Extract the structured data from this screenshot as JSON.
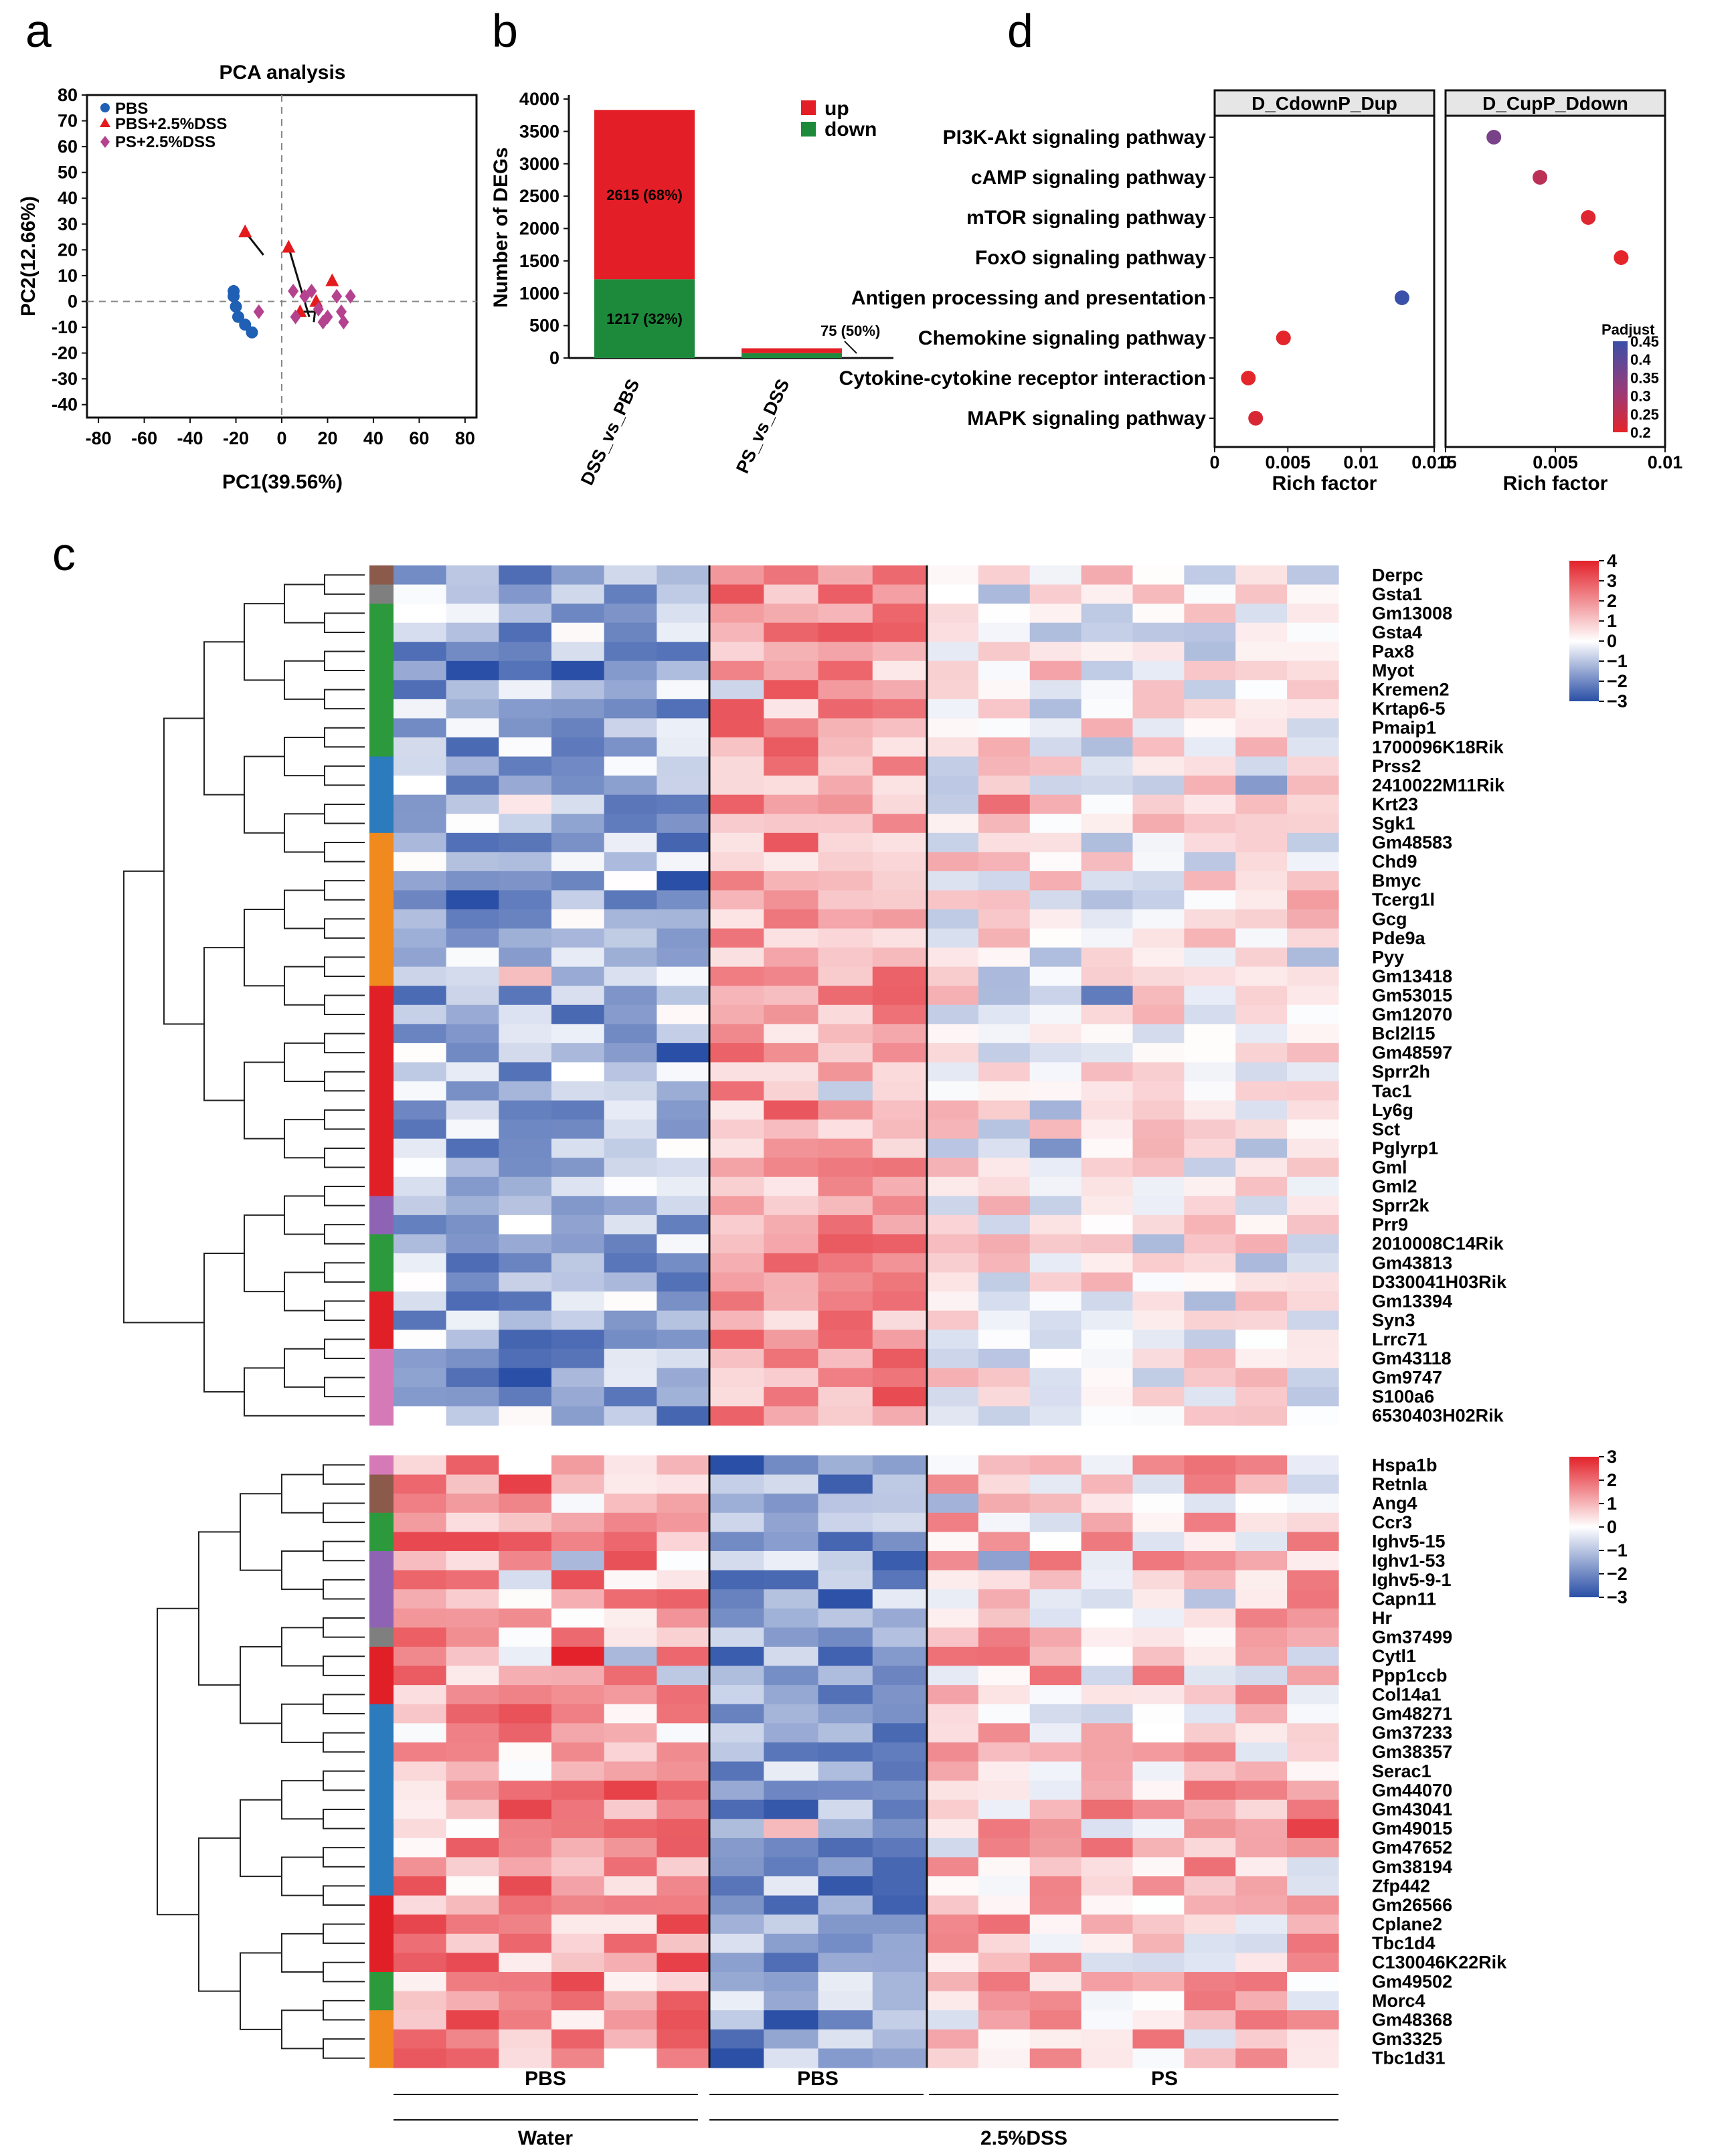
{
  "panel_labels": {
    "a": "a",
    "b": "b",
    "c": "c",
    "d": "d"
  },
  "colors": {
    "pbs": "#1f5fb4",
    "dss": "#e41a1c",
    "ps": "#b5428f",
    "up": "#e41e26",
    "down": "#1d8a3b",
    "heat_low": "#2a4fa6",
    "heat_mid": "#ffffff",
    "heat_high": "#e3222b",
    "padj_low": "#3b50a8",
    "padj_high": "#e4252a",
    "cluster_colors": {
      "brown": "#8c5a4a",
      "gray": "#7f7f7f",
      "green": "#2c9a3c",
      "blue": "#2b7bbd",
      "orange": "#f0891e",
      "red": "#e11f26",
      "purple": "#8e63b4",
      "pink": "#d67ab7"
    }
  },
  "chart_data": [
    {
      "id": "pca",
      "type": "scatter",
      "title": "PCA analysis",
      "xlabel": "PC1(39.56%)",
      "ylabel": "PC2(12.66%)",
      "xlim": [
        -85,
        85
      ],
      "ylim": [
        -45,
        80
      ],
      "xticks": [
        "-80",
        "-60",
        "-40",
        "-20",
        "0",
        "20",
        "40",
        "60",
        "80"
      ],
      "yticks": [
        "80",
        "70",
        "60",
        "50",
        "40",
        "30",
        "20",
        "10",
        "0",
        "-10",
        "-20",
        "-30",
        "-40"
      ],
      "xtick_values": [
        -80,
        -60,
        -40,
        -20,
        0,
        20,
        40,
        60,
        80
      ],
      "ytick_values": [
        80,
        70,
        60,
        50,
        40,
        30,
        20,
        10,
        0,
        -10,
        -20,
        -30,
        -40
      ],
      "legend": [
        "PBS",
        "PBS+2.5%DSS",
        "PS+2.5%DSS"
      ],
      "series": [
        {
          "name": "PBS",
          "marker": "circle",
          "points": [
            [
              -21,
              4
            ],
            [
              -21,
              2
            ],
            [
              -20,
              -2
            ],
            [
              -19,
              -6
            ],
            [
              -16,
              -9
            ],
            [
              -13,
              -12
            ]
          ]
        },
        {
          "name": "PBS+2.5%DSS",
          "marker": "triangle",
          "points": [
            [
              -16,
              27
            ],
            [
              3,
              21
            ],
            [
              15,
              0
            ],
            [
              22,
              8
            ],
            [
              8,
              -4
            ]
          ]
        },
        {
          "name": "PS+2.5%DSS",
          "marker": "diamond",
          "points": [
            [
              -10,
              -4
            ],
            [
              5,
              4
            ],
            [
              6,
              -6
            ],
            [
              10,
              2
            ],
            [
              13,
              4
            ],
            [
              16,
              -3
            ],
            [
              18,
              -8
            ],
            [
              20,
              -6
            ],
            [
              24,
              2
            ],
            [
              26,
              -4
            ],
            [
              27,
              -8
            ],
            [
              30,
              2
            ]
          ]
        }
      ],
      "connectors": [
        [
          [
            -16,
            27
          ],
          [
            -8,
            18
          ]
        ],
        [
          [
            3,
            21
          ],
          [
            12,
            -6
          ]
        ],
        [
          [
            8,
            -4
          ],
          [
            17,
            -4
          ]
        ],
        [
          [
            15,
            0
          ],
          [
            14,
            -8
          ]
        ]
      ]
    },
    {
      "id": "degs",
      "type": "bar",
      "xlabel": "",
      "ylabel": "Number of DEGs",
      "categories": [
        "DSS_vs_PBS",
        "PS_vs_DSS"
      ],
      "ylim": [
        0,
        4000
      ],
      "yticks": [
        "4000",
        "3500",
        "3000",
        "2500",
        "2000",
        "1500",
        "1000",
        "500",
        "0"
      ],
      "ytick_values": [
        4000,
        3500,
        3000,
        2500,
        2000,
        1500,
        1000,
        500,
        0
      ],
      "legend": [
        "up",
        "down"
      ],
      "series": [
        {
          "name": "down",
          "values": [
            1217,
            75
          ]
        },
        {
          "name": "up",
          "values": [
            2615,
            75
          ]
        }
      ],
      "labels": {
        "up": "2615 (68%)",
        "down": "1217 (32%)",
        "ps": "75 (50%)"
      }
    },
    {
      "id": "enrichment",
      "type": "scatter",
      "pathways": [
        "PI3K-Akt signaling pathway",
        "cAMP signaling pathway",
        "mTOR signaling pathway",
        "FoxO signaling pathway",
        "Antigen processing and presentation",
        "Chemokine signaling pathway",
        "Cytokine-cytokine receptor interaction",
        "MAPK signaling pathway"
      ],
      "facets": [
        {
          "title": "D_CdownP_Dup",
          "xlim": [
            0,
            0.015
          ],
          "xticks": [
            "0",
            "0.005",
            "0.01",
            "0.015"
          ],
          "xtick_values": [
            0,
            0.005,
            0.01,
            0.015
          ],
          "points": [
            {
              "pathway": "Antigen processing and presentation",
              "x": 0.0128,
              "padj": 0.45
            },
            {
              "pathway": "Chemokine signaling pathway",
              "x": 0.0047,
              "padj": 0.2
            },
            {
              "pathway": "Cytokine-cytokine receptor interaction",
              "x": 0.0023,
              "padj": 0.2
            },
            {
              "pathway": "MAPK signaling pathway",
              "x": 0.0028,
              "padj": 0.22
            }
          ]
        },
        {
          "title": "D_CupP_Ddown",
          "xlim": [
            0,
            0.01
          ],
          "xticks": [
            "0",
            "0.005",
            "0.01"
          ],
          "xtick_values": [
            0,
            0.005,
            0.01
          ],
          "points": [
            {
              "pathway": "PI3K-Akt signaling pathway",
              "x": 0.0022,
              "padj": 0.37
            },
            {
              "pathway": "cAMP signaling pathway",
              "x": 0.0043,
              "padj": 0.27
            },
            {
              "pathway": "mTOR signaling pathway",
              "x": 0.0065,
              "padj": 0.21
            },
            {
              "pathway": "FoxO signaling pathway",
              "x": 0.008,
              "padj": 0.2
            }
          ]
        }
      ],
      "xlabel": "Rich factor",
      "legend_title": "Padjust",
      "legend_ticks": [
        "0.45",
        "0.4",
        "0.35",
        "0.3",
        "0.25",
        "0.2"
      ],
      "legend_values": [
        0.45,
        0.4,
        0.35,
        0.3,
        0.25,
        0.2
      ]
    },
    {
      "id": "heatmap_top",
      "type": "heatmap",
      "genes": [
        "Derpc",
        "Gsta1",
        "Gm13008",
        "Gsta4",
        "Pax8",
        "Myot",
        "Kremen2",
        "Krtap6-5",
        "Pmaip1",
        "1700096K18Rik",
        "Prss2",
        "2410022M11Rik",
        "Krt23",
        "Sgk1",
        "Gm48583",
        "Chd9",
        "Bmyc",
        "Tcerg1l",
        "Gcg",
        "Pde9a",
        "Pyy",
        "Gm13418",
        "Gm53015",
        "Gm12070",
        "Bcl2l15",
        "Gm48597",
        "Sprr2h",
        "Tac1",
        "Ly6g",
        "Sct",
        "Pglyrp1",
        "Gml",
        "Gml2",
        "Sprr2k",
        "Prr9",
        "2010008C14Rik",
        "Gm43813",
        "D330041H03Rik",
        "Gm13394",
        "Syn3",
        "Lrrc71",
        "Gm43118",
        "Gm9747",
        "S100a6",
        "6530403H02Rik"
      ],
      "clusters": [
        [
          "brown",
          1
        ],
        [
          "gray",
          1
        ],
        [
          "green",
          8
        ],
        [
          "blue",
          4
        ],
        [
          "orange",
          8
        ],
        [
          "red",
          11
        ],
        [
          "purple",
          2
        ],
        [
          "green",
          3
        ],
        [
          "red",
          3
        ],
        [
          "pink",
          4
        ]
      ],
      "scale_ticks": [
        "4",
        "3",
        "2",
        "1",
        "0",
        "−1",
        "−2",
        "−3"
      ],
      "scale_values": [
        4,
        3,
        2,
        1,
        0,
        -1,
        -2,
        -3
      ],
      "zlim": [
        -3,
        4
      ],
      "seed": 7
    },
    {
      "id": "heatmap_bottom",
      "type": "heatmap",
      "genes": [
        "Hspa1b",
        "Retnla",
        "Ang4",
        "Ccr3",
        "Ighv5-15",
        "Ighv1-53",
        "Ighv5-9-1",
        "Capn11",
        "Hr",
        "Gm37499",
        "Cytl1",
        "Ppp1ccb",
        "Col14a1",
        "Gm48271",
        "Gm37233",
        "Gm38357",
        "Serac1",
        "Gm44070",
        "Gm43041",
        "Gm49015",
        "Gm47652",
        "Gm38194",
        "Zfp442",
        "Gm26566",
        "Cplane2",
        "Tbc1d4",
        "C130046K22Rik",
        "Gm49502",
        "Morc4",
        "Gm48368",
        "Gm3325",
        "Tbc1d31"
      ],
      "clusters": [
        [
          "pink",
          1
        ],
        [
          "brown",
          2
        ],
        [
          "green",
          2
        ],
        [
          "purple",
          4
        ],
        [
          "gray",
          1
        ],
        [
          "red",
          3
        ],
        [
          "blue",
          10
        ],
        [
          "red",
          4
        ],
        [
          "green",
          2
        ],
        [
          "orange",
          3
        ]
      ],
      "scale_ticks": [
        "3",
        "2",
        "1",
        "0",
        "−1",
        "−2",
        "−3"
      ],
      "scale_values": [
        3,
        2,
        1,
        0,
        -1,
        -2,
        -3
      ],
      "zlim": [
        -3,
        3
      ],
      "seed": 19
    }
  ],
  "heatmap_groups": {
    "top_row": [
      "PBS",
      "PBS",
      "PS"
    ],
    "bottom_row": [
      "Water",
      "2.5%DSS"
    ]
  }
}
